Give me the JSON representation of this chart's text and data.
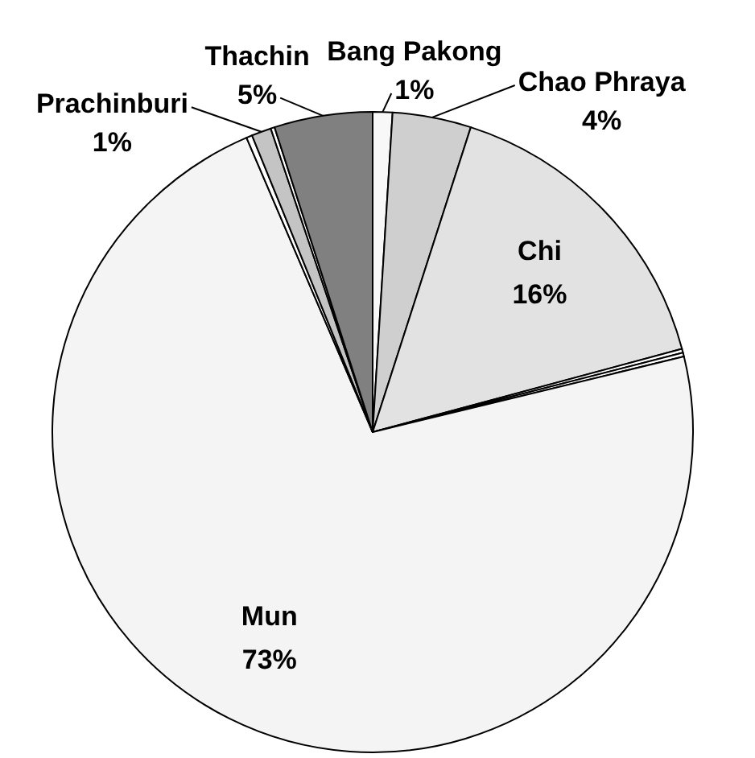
{
  "chart_data": {
    "type": "pie",
    "categories": [
      "Bang Pakong",
      "Chao Phraya",
      "Chi",
      null,
      null,
      "Mun",
      null,
      "Prachinburi",
      null,
      "Thachin"
    ],
    "values": [
      1,
      4,
      16,
      0.2,
      0.2,
      73,
      0.3,
      1,
      0.2,
      5
    ],
    "colors": [
      "#f8f8f8",
      "#cfcfcf",
      "#e2e2e2",
      "#ffffff",
      "#ffffff",
      "#f4f4f4",
      "#ffffff",
      "#c4c4c4",
      "#ffffff",
      "#808080"
    ],
    "value_labels": [
      "1%",
      "4%",
      "16%",
      null,
      null,
      "73%",
      null,
      "1%",
      null,
      "5%"
    ]
  }
}
